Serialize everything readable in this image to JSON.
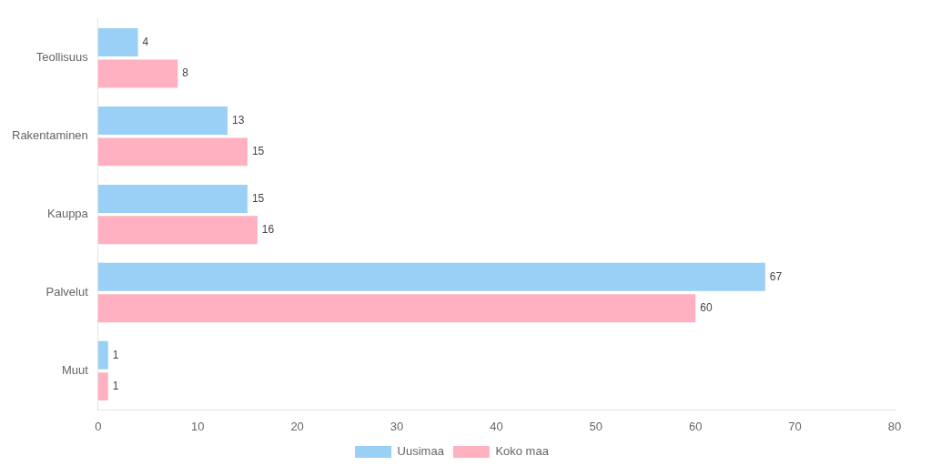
{
  "chart_data": {
    "type": "bar",
    "orientation": "horizontal",
    "categories": [
      "Teollisuus",
      "Rakentaminen",
      "Kauppa",
      "Palvelut",
      "Muut"
    ],
    "series": [
      {
        "name": "Uusimaa",
        "values": [
          4,
          13,
          15,
          67,
          1
        ]
      },
      {
        "name": "Koko maa",
        "values": [
          8,
          15,
          16,
          60,
          1
        ]
      }
    ],
    "xlim": [
      0,
      80
    ],
    "xticks": [
      0,
      10,
      20,
      30,
      40,
      50,
      60,
      70,
      80
    ],
    "grid": false,
    "legend": "bottom",
    "data_labels": true
  }
}
